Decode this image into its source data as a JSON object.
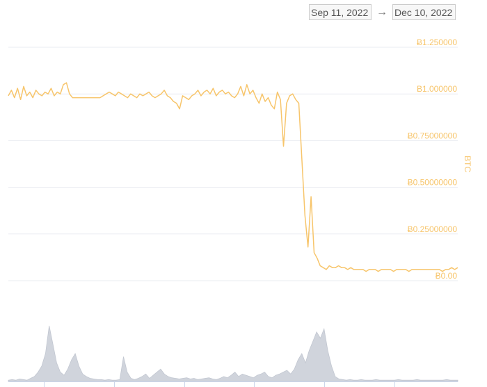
{
  "date_range": {
    "start": "Sep 11, 2022",
    "arrow": "→",
    "end": "Dec 10, 2022"
  },
  "colors": {
    "price_line": "#f7c56b",
    "volume_fill": "#d0d4dc",
    "volume_stroke": "#c2c7d1",
    "grid": "#e9ecf1",
    "tick_text": "#f7c56b"
  },
  "chart_data": {
    "type": "line",
    "ylabel": "BTC",
    "ylim": [
      0,
      1.25
    ],
    "yticks": [
      {
        "value": 1.25,
        "label": "Ƀ1.250000"
      },
      {
        "value": 1.0,
        "label": "Ƀ1.000000"
      },
      {
        "value": 0.75,
        "label": "Ƀ0.75000000"
      },
      {
        "value": 0.5,
        "label": "Ƀ0.50000000"
      },
      {
        "value": 0.25,
        "label": "Ƀ0.25000000"
      },
      {
        "value": 0.0,
        "label": "Ƀ0.00"
      }
    ],
    "grid": true,
    "x_start": "Sep 11, 2022",
    "x_end": "Dec 10, 2022",
    "series": [
      {
        "values": [
          0.99,
          1.02,
          0.98,
          1.03,
          0.97,
          1.04,
          0.99,
          1.01,
          0.98,
          1.02,
          1.0,
          0.99,
          1.01,
          1.0,
          1.03,
          0.99,
          1.01,
          1.0,
          1.05,
          1.06,
          1.0,
          0.98,
          0.98,
          0.98,
          0.98,
          0.98,
          0.98,
          0.98,
          0.98,
          0.98,
          0.98,
          0.99,
          1.0,
          1.01,
          1.0,
          0.99,
          1.01,
          1.0,
          0.99,
          0.98,
          1.0,
          0.99,
          0.98,
          1.0,
          0.99,
          1.0,
          1.01,
          0.99,
          0.98,
          0.99,
          1.0,
          1.02,
          0.99,
          0.98,
          0.96,
          0.95,
          0.92,
          0.99,
          0.98,
          0.97,
          0.99,
          1.0,
          1.02,
          0.99,
          1.01,
          1.02,
          1.0,
          1.03,
          0.99,
          1.01,
          1.02,
          1.0,
          1.01,
          0.99,
          0.98,
          1.0,
          1.04,
          0.99,
          1.05,
          1.0,
          1.02,
          0.98,
          0.95,
          1.0,
          0.96,
          0.98,
          0.94,
          0.92,
          1.01,
          0.97,
          0.72,
          0.95,
          0.99,
          1.0,
          0.97,
          0.95,
          0.65,
          0.35,
          0.18,
          0.45,
          0.15,
          0.12,
          0.08,
          0.07,
          0.06,
          0.08,
          0.07,
          0.07,
          0.08,
          0.07,
          0.07,
          0.06,
          0.07,
          0.06,
          0.06,
          0.06,
          0.06,
          0.05,
          0.06,
          0.06,
          0.06,
          0.05,
          0.06,
          0.06,
          0.06,
          0.06,
          0.05,
          0.06,
          0.06,
          0.06,
          0.06,
          0.05,
          0.06,
          0.06,
          0.06,
          0.06,
          0.06,
          0.06,
          0.06,
          0.06,
          0.06,
          0.06,
          0.05,
          0.06,
          0.06,
          0.07,
          0.06,
          0.07
        ]
      }
    ],
    "volume": [
      0.02,
      0.03,
      0.02,
      0.04,
      0.03,
      0.02,
      0.05,
      0.08,
      0.15,
      0.25,
      0.45,
      0.9,
      0.6,
      0.3,
      0.15,
      0.1,
      0.2,
      0.35,
      0.45,
      0.25,
      0.12,
      0.08,
      0.05,
      0.04,
      0.03,
      0.03,
      0.02,
      0.03,
      0.02,
      0.02,
      0.03,
      0.4,
      0.15,
      0.05,
      0.03,
      0.05,
      0.08,
      0.12,
      0.05,
      0.1,
      0.15,
      0.2,
      0.12,
      0.08,
      0.06,
      0.05,
      0.04,
      0.05,
      0.06,
      0.04,
      0.05,
      0.03,
      0.04,
      0.05,
      0.06,
      0.04,
      0.03,
      0.05,
      0.08,
      0.06,
      0.1,
      0.15,
      0.08,
      0.12,
      0.1,
      0.08,
      0.06,
      0.1,
      0.12,
      0.15,
      0.08,
      0.06,
      0.1,
      0.12,
      0.15,
      0.18,
      0.12,
      0.2,
      0.35,
      0.45,
      0.3,
      0.5,
      0.65,
      0.8,
      0.7,
      0.85,
      0.5,
      0.25,
      0.08,
      0.04,
      0.03,
      0.02,
      0.03,
      0.02,
      0.02,
      0.03,
      0.02,
      0.02,
      0.02,
      0.03,
      0.02,
      0.02,
      0.02,
      0.02,
      0.02,
      0.03,
      0.02,
      0.02,
      0.02,
      0.02,
      0.03,
      0.02,
      0.02,
      0.02,
      0.02,
      0.02,
      0.02,
      0.02,
      0.03,
      0.02,
      0.02,
      0.02
    ]
  }
}
